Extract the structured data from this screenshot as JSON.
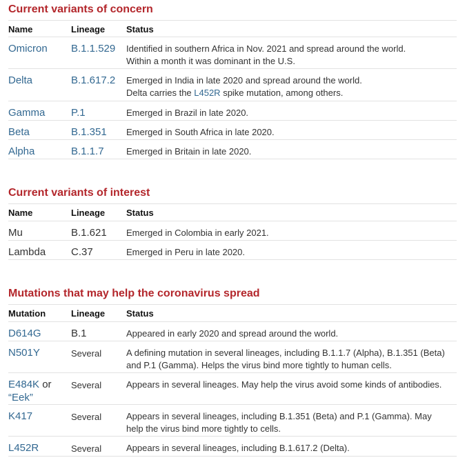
{
  "concern": {
    "title": "Current variants of concern",
    "headers": [
      "Name",
      "Lineage",
      "Status"
    ],
    "rows": [
      {
        "name": "Omicron",
        "lineage": "B.1.1.529",
        "line1": "Identified in southern Africa in Nov. 2021 and spread around the world.",
        "line2": "Within a month it was dominant in the U.S."
      },
      {
        "name": "Delta",
        "lineage": "B.1.617.2",
        "line1": "Emerged in India in late 2020 and spread around the world.",
        "line2_pre": "Delta carries the ",
        "line2_link": "L452R",
        "line2_post": " spike mutation, among others."
      },
      {
        "name": "Gamma",
        "lineage": "P.1",
        "line1": "Emerged in Brazil in late 2020."
      },
      {
        "name": "Beta",
        "lineage": "B.1.351",
        "line1": "Emerged in South Africa in late 2020."
      },
      {
        "name": "Alpha",
        "lineage": "B.1.1.7",
        "line1": "Emerged in Britain in late 2020."
      }
    ]
  },
  "interest": {
    "title": "Current variants of interest",
    "headers": [
      "Name",
      "Lineage",
      "Status"
    ],
    "rows": [
      {
        "name": "Mu",
        "lineage": "B.1.621",
        "line1": "Emerged in Colombia in early 2021."
      },
      {
        "name": "Lambda",
        "lineage": "C.37",
        "line1": "Emerged in Peru in late 2020."
      }
    ]
  },
  "mutations": {
    "title": "Mutations that may help the coronavirus spread",
    "headers": [
      "Mutation",
      "Lineage",
      "Status"
    ],
    "rows": [
      {
        "name": "D614G",
        "lineage": "B.1",
        "line1": "Appeared in early 2020 and spread around the world."
      },
      {
        "name": "N501Y",
        "lineage": "Several",
        "line1": "A defining mutation in several lineages, including B.1.1.7 (Alpha), B.1.351 (Beta)",
        "line2": "and P.1 (Gamma). Helps the virus bind more tightly to human cells."
      },
      {
        "name": "E484K",
        "name_suffix": " or",
        "name2": "“Eek”",
        "lineage": "Several",
        "line1": "Appears in several lineages. May help the virus avoid some kinds of antibodies."
      },
      {
        "name": "K417",
        "lineage": "Several",
        "line1": "Appears in several lineages, including B.1.351 (Beta) and P.1 (Gamma). May",
        "line2": "help the virus bind more tightly to cells."
      },
      {
        "name": "L452R",
        "lineage": "Several",
        "line1": "Appears in several lineages, including B.1.617.2 (Delta)."
      }
    ]
  }
}
